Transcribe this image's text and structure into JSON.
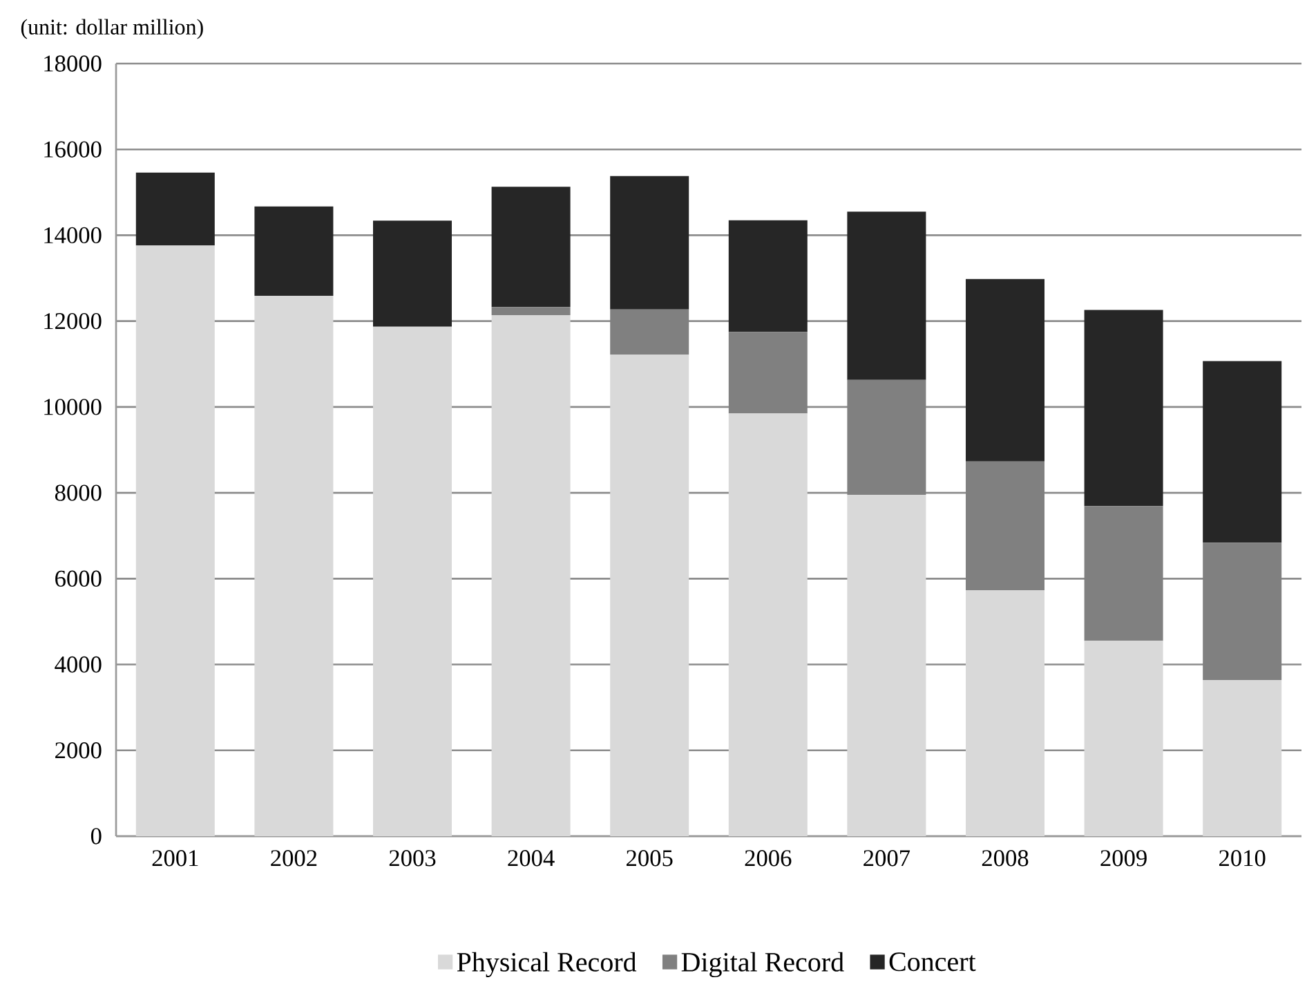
{
  "chart_data": {
    "type": "bar",
    "stacked": true,
    "categories": [
      "2001",
      "2002",
      "2003",
      "2004",
      "2005",
      "2006",
      "2007",
      "2008",
      "2009",
      "2010"
    ],
    "series": [
      {
        "name": "Physical Record",
        "color": "#d9d9d9",
        "values": [
          13760,
          12590,
          11870,
          12140,
          11220,
          9850,
          7950,
          5730,
          4550,
          3640
        ]
      },
      {
        "name": "Digital Record",
        "color": "#808080",
        "values": [
          0,
          0,
          0,
          190,
          1050,
          1900,
          2680,
          3000,
          3140,
          3200
        ]
      },
      {
        "name": "Concert",
        "color": "#262626",
        "values": [
          1700,
          2080,
          2470,
          2800,
          3110,
          2600,
          3920,
          4250,
          4570,
          4230
        ]
      }
    ],
    "ylim": [
      0,
      18000
    ],
    "yticks": [
      0,
      2000,
      4000,
      6000,
      8000,
      10000,
      12000,
      14000,
      16000,
      18000
    ],
    "grid": "y",
    "legend": "bottom",
    "annotations": [
      "(unit: dollar million)"
    ]
  }
}
